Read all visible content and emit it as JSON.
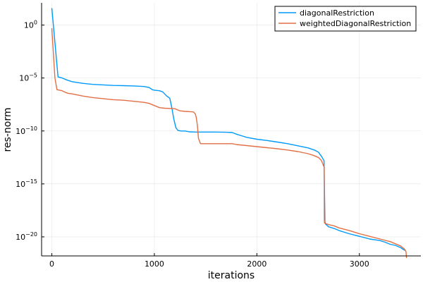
{
  "chart_data": {
    "type": "line",
    "title": "",
    "xlabel": "iterations",
    "ylabel": "res-norm",
    "xlim": [
      -100,
      3600
    ],
    "ylim_log10": [
      -21.8,
      2.1
    ],
    "yscale": "log",
    "grid": true,
    "legend_position": "top-right",
    "xticks": [
      0,
      1000,
      2000,
      3000
    ],
    "xtick_labels": [
      "0",
      "1000",
      "2000",
      "3000"
    ],
    "yticks_exp": [
      0,
      -5,
      -10,
      -15,
      -20
    ],
    "ytick_labels": [
      {
        "base": "10",
        "exp": "0"
      },
      {
        "base": "10",
        "exp": "−5"
      },
      {
        "base": "10",
        "exp": "−10"
      },
      {
        "base": "10",
        "exp": "−15"
      },
      {
        "base": "10",
        "exp": "−20"
      }
    ],
    "series": [
      {
        "name": "diagonalRestriction",
        "color": "#009AFA",
        "x": [
          0,
          60,
          100,
          150,
          200,
          300,
          400,
          500,
          600,
          700,
          800,
          900,
          950,
          980,
          1000,
          1050,
          1080,
          1100,
          1120,
          1150,
          1170,
          1190,
          1210,
          1230,
          1260,
          1300,
          1340,
          1400,
          1500,
          1600,
          1700,
          1760,
          1800,
          1850,
          1900,
          2000,
          2100,
          2200,
          2300,
          2400,
          2500,
          2560,
          2600,
          2630,
          2655,
          2663,
          2664,
          2670,
          2700,
          2750,
          2800,
          2900,
          3000,
          3100,
          3200,
          3250,
          3300,
          3350,
          3400,
          3430,
          3450
        ],
        "y": [
          1.6,
          -4.9,
          -5.0,
          -5.2,
          -5.35,
          -5.5,
          -5.6,
          -5.65,
          -5.7,
          -5.72,
          -5.75,
          -5.8,
          -5.9,
          -6.1,
          -6.15,
          -6.2,
          -6.3,
          -6.5,
          -6.7,
          -6.9,
          -7.8,
          -8.9,
          -9.7,
          -9.95,
          -10.0,
          -10.0,
          -10.08,
          -10.1,
          -10.1,
          -10.1,
          -10.12,
          -10.15,
          -10.3,
          -10.45,
          -10.6,
          -10.78,
          -10.9,
          -11.05,
          -11.2,
          -11.4,
          -11.6,
          -11.8,
          -12.0,
          -12.4,
          -12.8,
          -17.9,
          -18.6,
          -18.8,
          -19.05,
          -19.2,
          -19.4,
          -19.7,
          -19.95,
          -20.2,
          -20.35,
          -20.5,
          -20.7,
          -20.8,
          -21.0,
          -21.2,
          -21.3
        ]
      },
      {
        "name": "weightedDiagonalRestriction",
        "color": "#E26F46",
        "x": [
          0,
          30,
          50,
          100,
          130,
          160,
          200,
          300,
          400,
          500,
          600,
          700,
          800,
          900,
          950,
          1000,
          1050,
          1100,
          1200,
          1250,
          1300,
          1350,
          1380,
          1400,
          1410,
          1420,
          1430,
          1450,
          1500,
          1600,
          1700,
          1760,
          1800,
          1900,
          2000,
          2100,
          2200,
          2300,
          2400,
          2500,
          2550,
          2600,
          2630,
          2650,
          2657,
          2658,
          2660,
          2700,
          2750,
          2800,
          2900,
          3000,
          3100,
          3200,
          3300,
          3350,
          3400,
          3440,
          3455,
          3460
        ],
        "y": [
          -0.3,
          -5.0,
          -6.1,
          -6.2,
          -6.35,
          -6.45,
          -6.5,
          -6.7,
          -6.85,
          -6.95,
          -7.05,
          -7.1,
          -7.2,
          -7.3,
          -7.4,
          -7.6,
          -7.8,
          -7.85,
          -7.9,
          -8.1,
          -8.15,
          -8.18,
          -8.2,
          -8.4,
          -8.8,
          -9.5,
          -10.7,
          -11.2,
          -11.2,
          -11.2,
          -11.2,
          -11.2,
          -11.28,
          -11.38,
          -11.48,
          -11.58,
          -11.68,
          -11.8,
          -11.95,
          -12.15,
          -12.3,
          -12.5,
          -12.8,
          -13.3,
          -13.4,
          -18.3,
          -18.7,
          -18.85,
          -18.95,
          -19.15,
          -19.4,
          -19.7,
          -19.95,
          -20.2,
          -20.45,
          -20.65,
          -20.85,
          -21.15,
          -21.4,
          -22.0
        ]
      }
    ]
  }
}
